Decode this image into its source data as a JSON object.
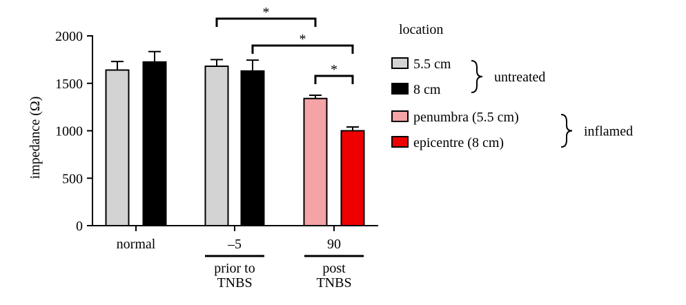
{
  "chart_data": {
    "type": "bar",
    "title": "",
    "xlabel": "",
    "ylabel": "impedance (Ω)",
    "ylim": [
      0,
      2000
    ],
    "yticks": [
      0,
      500,
      1000,
      1500,
      2000
    ],
    "groups": [
      {
        "label": "normal",
        "sublabel": ""
      },
      {
        "label": "–5",
        "sublabel": "prior to\nTNBS"
      },
      {
        "label": "90",
        "sublabel": "post\nTNBS"
      }
    ],
    "bars": [
      {
        "group": 0,
        "series": "5.5 cm",
        "value": 1640,
        "error": 90
      },
      {
        "group": 0,
        "series": "8 cm",
        "value": 1725,
        "error": 110
      },
      {
        "group": 1,
        "series": "5.5 cm",
        "value": 1680,
        "error": 70
      },
      {
        "group": 1,
        "series": "8 cm",
        "value": 1630,
        "error": 115
      },
      {
        "group": 2,
        "series": "penumbra (5.5 cm)",
        "value": 1340,
        "error": 35
      },
      {
        "group": 2,
        "series": "epicentre (8 cm)",
        "value": 1000,
        "error": 40
      }
    ],
    "significance": [
      {
        "from_bar": 2,
        "to_bar": 4,
        "label": "*"
      },
      {
        "from_bar": 3,
        "to_bar": 5,
        "label": "*"
      },
      {
        "from_bar": 4,
        "to_bar": 5,
        "label": "*"
      }
    ],
    "legend": {
      "title": "location",
      "placement": "right",
      "items": [
        {
          "label": "5.5 cm",
          "color": "#d3d3d3"
        },
        {
          "label": "8 cm",
          "color": "#000000"
        },
        {
          "label": "penumbra (5.5 cm)",
          "color": "#f4a3a6"
        },
        {
          "label": "epicentre (8 cm)",
          "color": "#ee0000"
        }
      ],
      "brackets": [
        {
          "label": "untreated",
          "items": [
            0,
            1
          ]
        },
        {
          "label": "inflamed",
          "items": [
            2,
            3
          ]
        }
      ]
    }
  }
}
